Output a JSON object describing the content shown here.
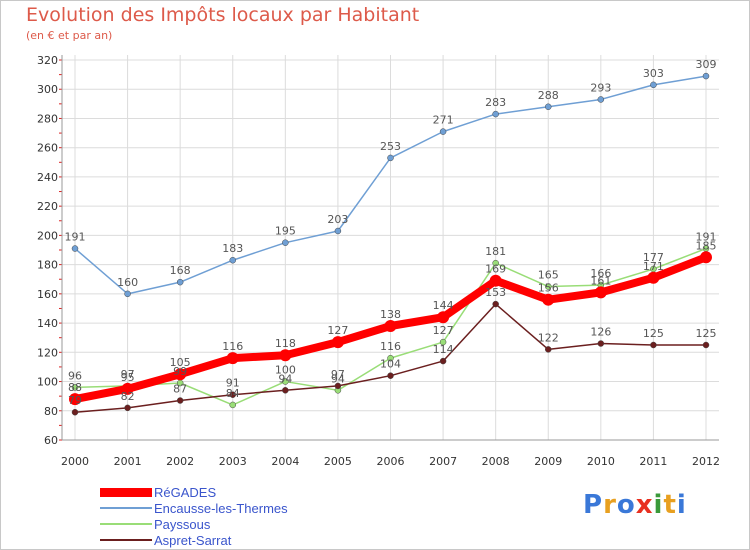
{
  "header": {
    "title": "Evolution des Impôts locaux par Habitant",
    "subtitle": "(en € et par an)"
  },
  "brand": {
    "logo_text": "Proxiti"
  },
  "chart_data": {
    "type": "line",
    "title": "Evolution des Impôts locaux par Habitant",
    "subtitle": "(en € et par an)",
    "xlabel": "",
    "ylabel": "",
    "x": [
      "2000",
      "2001",
      "2002",
      "2003",
      "2004",
      "2005",
      "2006",
      "2007",
      "2008",
      "2009",
      "2010",
      "2011",
      "2012"
    ],
    "ylim": [
      60,
      320
    ],
    "yticks": [
      60,
      80,
      100,
      120,
      140,
      160,
      180,
      200,
      220,
      240,
      260,
      280,
      300,
      320
    ],
    "grid": true,
    "legend_position": "bottom-left",
    "series": [
      {
        "name": "RéGADES",
        "color": "#ff0000",
        "values": [
          88,
          95,
          105,
          116,
          118,
          127,
          138,
          144,
          169,
          156,
          161,
          171,
          185
        ]
      },
      {
        "name": "Encausse-les-Thermes",
        "color": "#6f9fd4",
        "values": [
          191,
          160,
          168,
          183,
          195,
          203,
          253,
          271,
          283,
          288,
          293,
          303,
          309
        ]
      },
      {
        "name": "Payssous",
        "color": "#99dd77",
        "values": [
          96,
          97,
          99,
          84,
          100,
          94,
          116,
          127,
          181,
          165,
          166,
          177,
          191
        ]
      },
      {
        "name": "Aspret-Sarrat",
        "color": "#6b1f1f",
        "values": [
          79,
          82,
          87,
          91,
          94,
          97,
          104,
          114,
          153,
          122,
          126,
          125,
          125
        ]
      }
    ]
  }
}
